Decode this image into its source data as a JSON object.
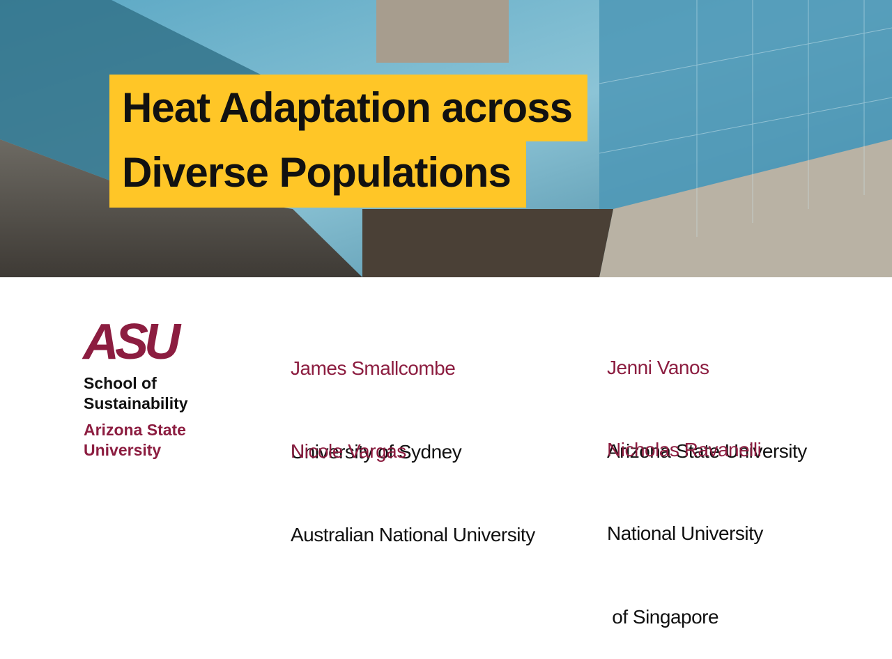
{
  "title": {
    "lines": [
      "Heat Adaptation across",
      "Diverse Populations"
    ]
  },
  "logo": {
    "mark": "ASU",
    "unit": [
      "School of",
      "Sustainability"
    ],
    "university": [
      "Arizona State",
      "University"
    ]
  },
  "speakers": [
    {
      "name": "James Smallcombe",
      "affiliation": [
        "University of Sydney"
      ]
    },
    {
      "name": "Nicole Vargas",
      "affiliation": [
        "Australian National University"
      ]
    },
    {
      "name": "Jenni Vanos",
      "affiliation": [
        "Arizona State University"
      ]
    },
    {
      "name": "Nicholas Ravanelli",
      "affiliation": [
        "National University",
        " of Singapore"
      ]
    }
  ]
}
